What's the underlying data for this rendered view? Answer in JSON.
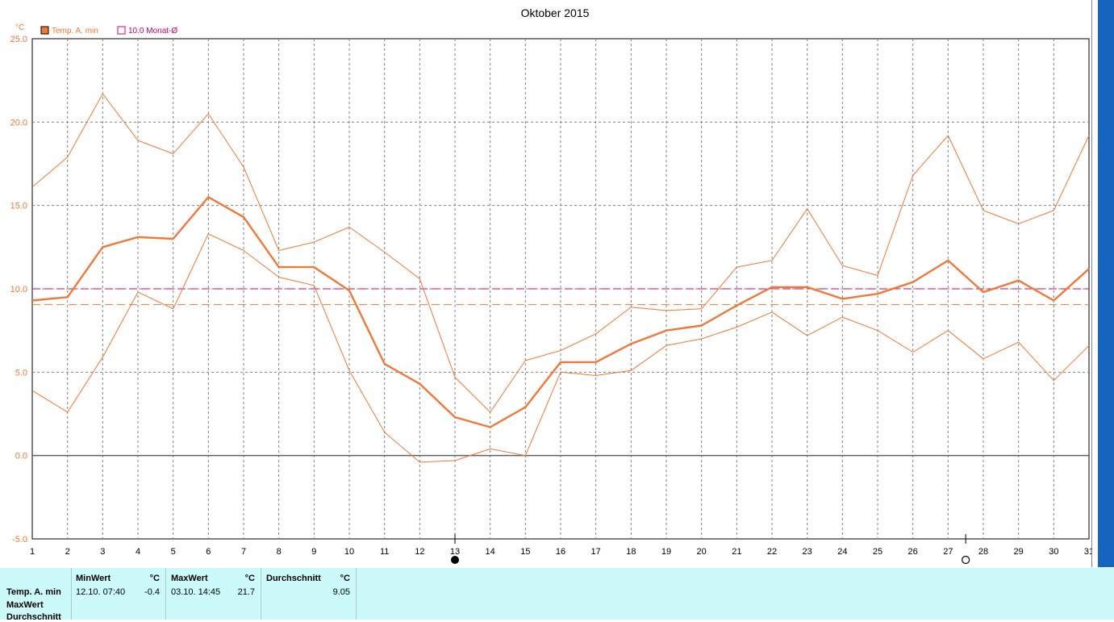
{
  "chart_data": {
    "type": "line",
    "title": "Oktober 2015",
    "y_unit": "°C",
    "x": [
      1,
      2,
      3,
      4,
      5,
      6,
      7,
      8,
      9,
      10,
      11,
      12,
      13,
      14,
      15,
      16,
      17,
      18,
      19,
      20,
      21,
      22,
      23,
      24,
      25,
      26,
      27,
      28,
      29,
      30,
      31
    ],
    "ylim": [
      -5,
      25
    ],
    "yticks": [
      "25.0",
      "20.0",
      "15.0",
      "10.0",
      "5.0",
      "0.0",
      "-5.0"
    ],
    "grid": true,
    "legend": [
      {
        "label": "Temp. A. min",
        "color": "#f07838",
        "filled": true
      },
      {
        "label": "10.0 Monat-Ø",
        "color": "#d0006f",
        "filled": false
      }
    ],
    "series": [
      {
        "name": "Temp. A. min",
        "role": "main",
        "values": [
          9.3,
          9.5,
          12.5,
          13.1,
          13.0,
          15.5,
          14.3,
          11.3,
          11.3,
          9.9,
          5.5,
          4.3,
          2.3,
          1.7,
          2.9,
          5.6,
          5.6,
          6.7,
          7.5,
          7.8,
          9.0,
          10.1,
          10.1,
          9.4,
          9.7,
          10.4,
          11.7,
          9.8,
          10.5,
          9.3,
          11.2
        ]
      },
      {
        "role": "max",
        "values": [
          16.1,
          17.9,
          21.7,
          18.9,
          18.1,
          20.5,
          17.3,
          12.3,
          12.8,
          13.7,
          12.2,
          10.6,
          4.7,
          2.6,
          5.7,
          6.3,
          7.3,
          8.9,
          8.7,
          8.8,
          11.3,
          11.7,
          14.8,
          11.4,
          10.8,
          16.8,
          19.2,
          14.7,
          13.9,
          14.7,
          19.2
        ]
      },
      {
        "role": "min",
        "values": [
          3.9,
          2.6,
          5.9,
          9.8,
          8.8,
          13.3,
          12.3,
          10.7,
          10.2,
          5.1,
          1.4,
          -0.4,
          -0.3,
          0.4,
          0.0,
          5.0,
          4.8,
          5.1,
          6.6,
          7.0,
          7.7,
          8.6,
          7.2,
          8.3,
          7.5,
          6.2,
          7.5,
          5.8,
          6.8,
          4.5,
          6.6
        ]
      }
    ],
    "reference_lines": [
      {
        "value": 10.0,
        "color": "#d0006f"
      },
      {
        "value": 9.05,
        "color": "#f07838"
      }
    ],
    "moon_markers": [
      {
        "day": 13,
        "phase": "new"
      },
      {
        "day": 27.5,
        "phase": "full"
      }
    ]
  },
  "stats": {
    "row_labels": [
      "Temp. A. min",
      "MaxWert",
      "Durchschnitt"
    ],
    "minwert": {
      "header": "MinWert",
      "unit": "°C",
      "datetime": "12.10.  07:40",
      "value": "-0.4"
    },
    "maxwert": {
      "header": "MaxWert",
      "unit": "°C",
      "datetime": "03.10.  14:45",
      "value": "21.7"
    },
    "durchschnitt": {
      "header": "Durchschnitt",
      "unit": "°C",
      "value": "9.05"
    }
  }
}
